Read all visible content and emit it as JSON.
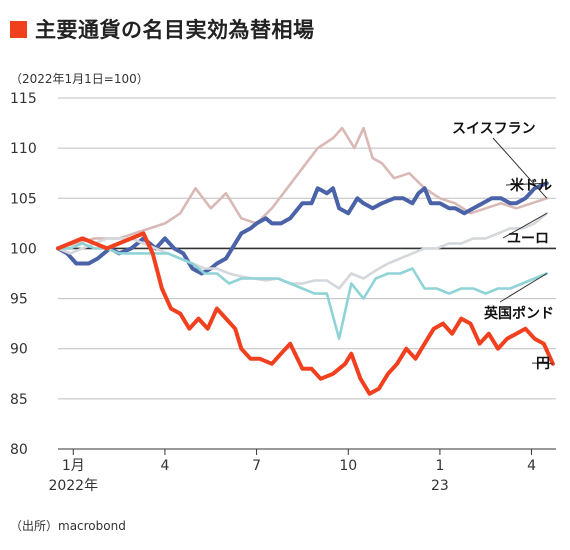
{
  "title": "主要通貨の名目実効為替相場",
  "index_note": "（2022年1月1日=100）",
  "source": "（出所）macrobond",
  "colors": {
    "title_mark": "#f0401e",
    "grid": "#bfbfbf",
    "baseline": "#333333",
    "swiss_franc": "#d9b9b5",
    "us_dollar": "#4a63a8",
    "euro": "#d4d7dc",
    "pound": "#8fd3d7",
    "yen": "#f0401e"
  },
  "chart_data": {
    "type": "line",
    "ylim": [
      80,
      115
    ],
    "yticks": [
      "80",
      "85",
      "90",
      "95",
      "100",
      "105",
      "110",
      "115"
    ],
    "xlim": [
      0,
      16.3
    ],
    "xticks": [
      {
        "x": 0.5,
        "label": "1月",
        "sub": "2022年"
      },
      {
        "x": 3.5,
        "label": "4",
        "sub": ""
      },
      {
        "x": 6.5,
        "label": "7",
        "sub": ""
      },
      {
        "x": 9.5,
        "label": "10",
        "sub": ""
      },
      {
        "x": 12.5,
        "label": "1",
        "sub": "23"
      },
      {
        "x": 15.5,
        "label": "4",
        "sub": ""
      }
    ],
    "baseline": 100,
    "series": [
      {
        "name": "スイスフラン",
        "color_key": "swiss_franc",
        "width": 2.6,
        "points": [
          [
            0,
            100
          ],
          [
            0.6,
            100.5
          ],
          [
            1.2,
            101
          ],
          [
            2,
            101
          ],
          [
            2.5,
            101.5
          ],
          [
            3,
            102
          ],
          [
            3.5,
            102.5
          ],
          [
            4,
            103.5
          ],
          [
            4.5,
            106
          ],
          [
            5,
            104
          ],
          [
            5.5,
            105.5
          ],
          [
            6,
            103
          ],
          [
            6.5,
            102.5
          ],
          [
            7,
            104
          ],
          [
            7.5,
            106
          ],
          [
            8,
            108
          ],
          [
            8.5,
            110
          ],
          [
            9,
            111
          ],
          [
            9.3,
            112
          ],
          [
            9.7,
            110
          ],
          [
            10,
            112
          ],
          [
            10.3,
            109
          ],
          [
            10.6,
            108.5
          ],
          [
            11,
            107
          ],
          [
            11.5,
            107.5
          ],
          [
            12,
            106
          ],
          [
            12.5,
            105
          ],
          [
            13,
            104.5
          ],
          [
            13.5,
            103.5
          ],
          [
            14,
            104
          ],
          [
            14.5,
            104.5
          ],
          [
            15,
            104
          ],
          [
            15.5,
            104.5
          ],
          [
            16,
            105
          ]
        ]
      },
      {
        "name": "米ドル",
        "color_key": "us_dollar",
        "width": 4,
        "points": [
          [
            0,
            100
          ],
          [
            0.3,
            99.5
          ],
          [
            0.6,
            98.5
          ],
          [
            1,
            98.5
          ],
          [
            1.3,
            99
          ],
          [
            1.7,
            100
          ],
          [
            2,
            99.5
          ],
          [
            2.4,
            100
          ],
          [
            2.8,
            101
          ],
          [
            3,
            100.5
          ],
          [
            3.2,
            100
          ],
          [
            3.5,
            101
          ],
          [
            3.8,
            100
          ],
          [
            4.1,
            99.5
          ],
          [
            4.4,
            98
          ],
          [
            4.7,
            97.5
          ],
          [
            5,
            98
          ],
          [
            5.2,
            98.5
          ],
          [
            5.5,
            99
          ],
          [
            5.8,
            100.5
          ],
          [
            6,
            101.5
          ],
          [
            6.3,
            102
          ],
          [
            6.5,
            102.5
          ],
          [
            6.8,
            103
          ],
          [
            7,
            102.5
          ],
          [
            7.3,
            102.5
          ],
          [
            7.6,
            103
          ],
          [
            8,
            104.5
          ],
          [
            8.3,
            104.5
          ],
          [
            8.5,
            106
          ],
          [
            8.8,
            105.5
          ],
          [
            9,
            106
          ],
          [
            9.2,
            104
          ],
          [
            9.5,
            103.5
          ],
          [
            9.8,
            105
          ],
          [
            10,
            104.5
          ],
          [
            10.3,
            104
          ],
          [
            10.6,
            104.5
          ],
          [
            11,
            105
          ],
          [
            11.3,
            105
          ],
          [
            11.6,
            104.5
          ],
          [
            11.8,
            105.5
          ],
          [
            12,
            106
          ],
          [
            12.2,
            104.5
          ],
          [
            12.5,
            104.5
          ],
          [
            12.8,
            104
          ],
          [
            13,
            104
          ],
          [
            13.3,
            103.5
          ],
          [
            13.6,
            104
          ],
          [
            13.9,
            104.5
          ],
          [
            14.2,
            105
          ],
          [
            14.5,
            105
          ],
          [
            14.8,
            104.5
          ],
          [
            15,
            104.5
          ],
          [
            15.3,
            105
          ],
          [
            15.6,
            106
          ],
          [
            16,
            106.5
          ]
        ]
      },
      {
        "name": "ユーロ",
        "color_key": "euro",
        "width": 2.6,
        "points": [
          [
            0,
            100
          ],
          [
            0.4,
            99.5
          ],
          [
            0.8,
            100
          ],
          [
            1.2,
            100.5
          ],
          [
            1.6,
            101
          ],
          [
            2,
            101
          ],
          [
            2.4,
            101
          ],
          [
            2.8,
            100.5
          ],
          [
            3.2,
            100
          ],
          [
            3.6,
            99.5
          ],
          [
            4,
            99
          ],
          [
            4.4,
            98.5
          ],
          [
            4.8,
            98
          ],
          [
            5.2,
            98
          ],
          [
            5.6,
            97.5
          ],
          [
            6,
            97.2
          ],
          [
            6.4,
            97
          ],
          [
            6.8,
            96.8
          ],
          [
            7.2,
            97
          ],
          [
            7.6,
            96.5
          ],
          [
            8,
            96.5
          ],
          [
            8.4,
            96.8
          ],
          [
            8.8,
            96.8
          ],
          [
            9.2,
            96
          ],
          [
            9.6,
            97.5
          ],
          [
            10,
            97
          ],
          [
            10.4,
            97.8
          ],
          [
            10.8,
            98.5
          ],
          [
            11.2,
            99
          ],
          [
            11.6,
            99.5
          ],
          [
            12,
            100
          ],
          [
            12.4,
            100
          ],
          [
            12.8,
            100.5
          ],
          [
            13.2,
            100.5
          ],
          [
            13.6,
            101
          ],
          [
            14,
            101
          ],
          [
            14.4,
            101.5
          ],
          [
            14.8,
            102
          ],
          [
            15.2,
            102
          ],
          [
            15.6,
            102.5
          ],
          [
            16,
            103.5
          ]
        ]
      },
      {
        "name": "英国ポンド",
        "color_key": "pound",
        "width": 2.6,
        "points": [
          [
            0,
            100
          ],
          [
            0.4,
            100
          ],
          [
            0.8,
            100.5
          ],
          [
            1.2,
            100
          ],
          [
            1.6,
            100
          ],
          [
            2,
            99.5
          ],
          [
            2.4,
            99.5
          ],
          [
            2.8,
            99.5
          ],
          [
            3.2,
            99.5
          ],
          [
            3.6,
            99.5
          ],
          [
            4,
            99
          ],
          [
            4.4,
            98.5
          ],
          [
            4.8,
            97.5
          ],
          [
            5.2,
            97.5
          ],
          [
            5.6,
            96.5
          ],
          [
            6,
            97
          ],
          [
            6.4,
            97
          ],
          [
            6.8,
            97
          ],
          [
            7.2,
            97
          ],
          [
            7.6,
            96.5
          ],
          [
            8,
            96
          ],
          [
            8.4,
            95.5
          ],
          [
            8.8,
            95.5
          ],
          [
            9.2,
            91
          ],
          [
            9.6,
            96.5
          ],
          [
            10,
            95
          ],
          [
            10.4,
            97
          ],
          [
            10.8,
            97.5
          ],
          [
            11.2,
            97.5
          ],
          [
            11.6,
            98
          ],
          [
            12,
            96
          ],
          [
            12.4,
            96
          ],
          [
            12.8,
            95.5
          ],
          [
            13.2,
            96
          ],
          [
            13.6,
            96
          ],
          [
            14,
            95.5
          ],
          [
            14.4,
            96
          ],
          [
            14.8,
            96
          ],
          [
            15.2,
            96.5
          ],
          [
            15.6,
            97
          ],
          [
            16,
            97.5
          ]
        ]
      },
      {
        "name": "円",
        "color_key": "yen",
        "width": 4,
        "points": [
          [
            0,
            100
          ],
          [
            0.4,
            100.5
          ],
          [
            0.8,
            101
          ],
          [
            1.2,
            100.5
          ],
          [
            1.6,
            100
          ],
          [
            2,
            100.5
          ],
          [
            2.4,
            101
          ],
          [
            2.8,
            101.5
          ],
          [
            3.1,
            99.5
          ],
          [
            3.4,
            96
          ],
          [
            3.7,
            94
          ],
          [
            4,
            93.5
          ],
          [
            4.3,
            92
          ],
          [
            4.6,
            93
          ],
          [
            4.9,
            92
          ],
          [
            5.2,
            94
          ],
          [
            5.5,
            93
          ],
          [
            5.8,
            92
          ],
          [
            6,
            90
          ],
          [
            6.3,
            89
          ],
          [
            6.6,
            89
          ],
          [
            7,
            88.5
          ],
          [
            7.3,
            89.5
          ],
          [
            7.6,
            90.5
          ],
          [
            8,
            88
          ],
          [
            8.3,
            88
          ],
          [
            8.6,
            87
          ],
          [
            9,
            87.5
          ],
          [
            9.4,
            88.5
          ],
          [
            9.6,
            89.5
          ],
          [
            9.9,
            87
          ],
          [
            10.2,
            85.5
          ],
          [
            10.5,
            86
          ],
          [
            10.8,
            87.5
          ],
          [
            11.1,
            88.5
          ],
          [
            11.4,
            90
          ],
          [
            11.7,
            89
          ],
          [
            12,
            90.5
          ],
          [
            12.3,
            92
          ],
          [
            12.6,
            92.5
          ],
          [
            12.9,
            91.5
          ],
          [
            13.2,
            93
          ],
          [
            13.5,
            92.5
          ],
          [
            13.8,
            90.5
          ],
          [
            14.1,
            91.5
          ],
          [
            14.4,
            90
          ],
          [
            14.7,
            91
          ],
          [
            15,
            91.5
          ],
          [
            15.3,
            92
          ],
          [
            15.6,
            91
          ],
          [
            15.9,
            90.5
          ],
          [
            16.2,
            88.5
          ]
        ]
      }
    ],
    "legend": [
      {
        "label": "スイスフラン",
        "color_key": "swiss_franc"
      },
      {
        "label": "米ドル",
        "color_key": "us_dollar"
      },
      {
        "label": "ユーロ",
        "color_key": "euro"
      },
      {
        "label": "英国ポンド",
        "color_key": "pound"
      },
      {
        "label": "円",
        "color_key": "yen"
      }
    ]
  }
}
